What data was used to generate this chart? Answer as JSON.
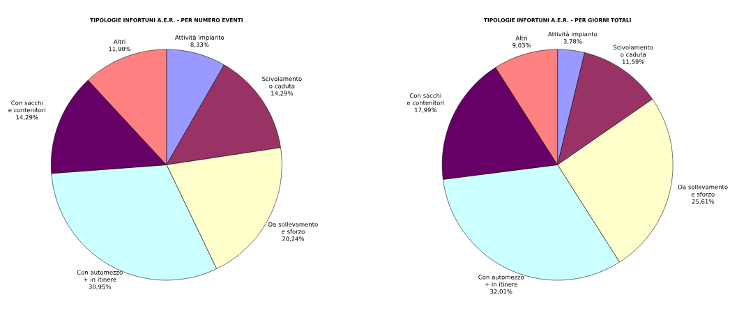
{
  "chart_data": [
    {
      "type": "pie",
      "title": "TIPOLOGIE INFORTUNI A.E.R. - PER NUMERO EVENTI",
      "categories": [
        "Attività impianto",
        "Scivolamento o caduta",
        "Da sollevamento e sforzo",
        "Con automezzo + in itinere",
        "Con sacchi e contenitori",
        "Altri"
      ],
      "values": [
        8.33,
        14.29,
        20.24,
        30.95,
        14.29,
        11.9
      ],
      "value_labels": [
        "8,33%",
        "14,29%",
        "20,24%",
        "30,95%",
        "14,29%",
        "11,90%"
      ],
      "colors": [
        "#9999ff",
        "#993366",
        "#ffffcc",
        "#ccffff",
        "#660066",
        "#ff8080"
      ]
    },
    {
      "type": "pie",
      "title": "TIPOLOGIE INFORTUNI A.E.R. - PER GIORNI TOTALI",
      "categories": [
        "Attività impianto",
        "Scivolamento o caduta",
        "Da sollevamento e sforzo",
        "Con automezzo + in itinere",
        "Con sacchi e contenitori",
        "Altri"
      ],
      "values": [
        3.78,
        11.59,
        25.61,
        32.01,
        17.99,
        9.03
      ],
      "value_labels": [
        "3,78%",
        "11,59%",
        "25,61%",
        "32,01%",
        "17,99%",
        "9,03%"
      ],
      "colors": [
        "#9999ff",
        "#993366",
        "#ffffcc",
        "#ccffff",
        "#660066",
        "#ff8080"
      ]
    }
  ]
}
